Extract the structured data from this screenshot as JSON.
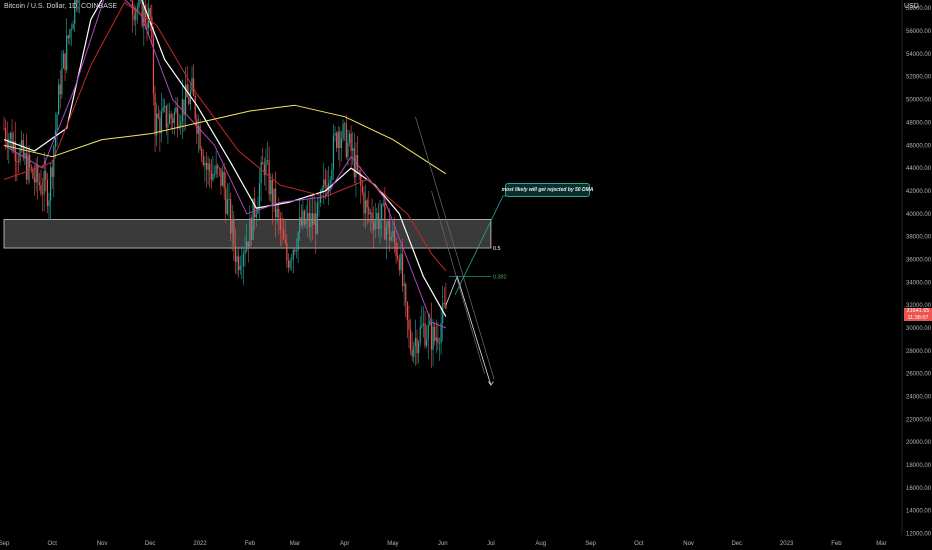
{
  "header": {
    "symbol_title": "Bitcoin / U.S. Dollar, 1D, COINBASE",
    "currency": "USD"
  },
  "annotation": {
    "text": "most likely will get rejected by 50 DMA"
  },
  "fib_labels": {
    "level_1": "0.5",
    "level_2": "0.382"
  },
  "last_price": {
    "price": "31641.65",
    "countdown": "11:38:07"
  },
  "colors": {
    "up": "#26a69a",
    "down": "#ef5350",
    "ma_white": "#ffffff",
    "ma_purple": "#ab47bc",
    "ma_red": "#c62828",
    "ma_yellow": "#f5e663",
    "zone": "#d0d0d0"
  },
  "chart_data": {
    "type": "candlestick",
    "title": "Bitcoin / U.S. Dollar, 1D, COINBASE",
    "y_axis": {
      "ticks": [
        "58000.00",
        "56000.00",
        "54000.00",
        "52000.00",
        "50000.00",
        "48000.00",
        "46000.00",
        "44000.00",
        "42000.00",
        "40000.00",
        "38000.00",
        "36000.00",
        "34000.00",
        "32000.00",
        "30000.00",
        "28000.00",
        "26000.00",
        "24000.00",
        "22000.00",
        "20000.00",
        "18000.00",
        "16000.00",
        "14000.00",
        "12000.00"
      ],
      "range": [
        11000,
        59000
      ]
    },
    "x_axis": {
      "ticks": [
        "Sep",
        "Oct",
        "Nov",
        "Dec",
        "2022",
        "Feb",
        "Mar",
        "Apr",
        "May",
        "Jun",
        "Jul",
        "Aug",
        "Sep",
        "Oct",
        "Nov",
        "Dec",
        "2023",
        "Feb",
        "Mar"
      ]
    },
    "price_path": [
      [
        "2021-09-01",
        47500
      ],
      [
        "2021-09-10",
        45500
      ],
      [
        "2021-09-20",
        43000
      ],
      [
        "2021-09-29",
        42000
      ],
      [
        "2021-10-06",
        51500
      ],
      [
        "2021-10-15",
        58500
      ],
      [
        "2021-10-20",
        64000
      ],
      [
        "2021-11-01",
        61000
      ],
      [
        "2021-11-10",
        68000
      ],
      [
        "2021-11-20",
        58500
      ],
      [
        "2021-12-01",
        57000
      ],
      [
        "2021-12-04",
        48000
      ],
      [
        "2021-12-15",
        48500
      ],
      [
        "2021-12-27",
        50500
      ],
      [
        "2022-01-05",
        44000
      ],
      [
        "2022-01-15",
        43000
      ],
      [
        "2022-01-24",
        36000
      ],
      [
        "2022-02-01",
        38500
      ],
      [
        "2022-02-10",
        44500
      ],
      [
        "2022-02-24",
        36000
      ],
      [
        "2022-03-05",
        39000
      ],
      [
        "2022-03-15",
        39500
      ],
      [
        "2022-03-28",
        47500
      ],
      [
        "2022-04-05",
        45500
      ],
      [
        "2022-04-15",
        40000
      ],
      [
        "2022-04-25",
        39500
      ],
      [
        "2022-05-05",
        36500
      ],
      [
        "2022-05-09",
        31000
      ],
      [
        "2022-05-12",
        28500
      ],
      [
        "2022-05-20",
        30000
      ],
      [
        "2022-05-27",
        29000
      ],
      [
        "2022-06-03",
        31641.65
      ]
    ],
    "moving_averages": [
      {
        "color": "white",
        "points": [
          [
            "2021-09-01",
            46500
          ],
          [
            "2021-09-20",
            45500
          ],
          [
            "2021-10-10",
            47500
          ],
          [
            "2021-10-25",
            57000
          ],
          [
            "2021-11-10",
            61000
          ],
          [
            "2021-11-25",
            59000
          ],
          [
            "2021-12-10",
            53500
          ],
          [
            "2021-12-30",
            49500
          ],
          [
            "2022-01-20",
            44500
          ],
          [
            "2022-02-05",
            40500
          ],
          [
            "2022-02-25",
            41000
          ],
          [
            "2022-03-20",
            42000
          ],
          [
            "2022-04-05",
            44000
          ],
          [
            "2022-04-20",
            42500
          ],
          [
            "2022-05-05",
            40000
          ],
          [
            "2022-05-20",
            34500
          ],
          [
            "2022-06-03",
            31000
          ]
        ]
      },
      {
        "color": "purple",
        "points": [
          [
            "2021-09-01",
            46000
          ],
          [
            "2021-09-25",
            44000
          ],
          [
            "2021-10-15",
            51000
          ],
          [
            "2021-11-05",
            60000
          ],
          [
            "2021-11-25",
            57500
          ],
          [
            "2021-12-15",
            50000
          ],
          [
            "2022-01-10",
            46000
          ],
          [
            "2022-01-30",
            40000
          ],
          [
            "2022-02-20",
            41000
          ],
          [
            "2022-03-20",
            41500
          ],
          [
            "2022-04-05",
            45000
          ],
          [
            "2022-04-25",
            41500
          ],
          [
            "2022-05-10",
            36000
          ],
          [
            "2022-05-25",
            30500
          ],
          [
            "2022-06-03",
            30000
          ]
        ]
      },
      {
        "color": "red",
        "points": [
          [
            "2021-09-01",
            43000
          ],
          [
            "2021-10-01",
            44500
          ],
          [
            "2021-10-25",
            53000
          ],
          [
            "2021-11-15",
            58500
          ],
          [
            "2021-12-05",
            56500
          ],
          [
            "2021-12-30",
            50500
          ],
          [
            "2022-01-25",
            45500
          ],
          [
            "2022-02-20",
            42500
          ],
          [
            "2022-03-20",
            41500
          ],
          [
            "2022-04-15",
            43000
          ],
          [
            "2022-05-10",
            40000
          ],
          [
            "2022-05-25",
            36500
          ],
          [
            "2022-06-03",
            35000
          ]
        ]
      },
      {
        "color": "yellow",
        "points": [
          [
            "2021-09-01",
            46000
          ],
          [
            "2021-10-01",
            45000
          ],
          [
            "2021-11-01",
            46500
          ],
          [
            "2021-12-01",
            47000
          ],
          [
            "2022-01-01",
            48000
          ],
          [
            "2022-02-01",
            49000
          ],
          [
            "2022-03-01",
            49500
          ],
          [
            "2022-04-01",
            48500
          ],
          [
            "2022-05-01",
            46500
          ],
          [
            "2022-06-03",
            43500
          ]
        ]
      }
    ],
    "support_zone": {
      "from": "2021-09-01",
      "to": "2022-07-01",
      "y_low": 37000,
      "y_high": 39500
    },
    "fib_levels": [
      {
        "label": "0.5",
        "y": 37000
      },
      {
        "label": "0.382",
        "y": 34500
      }
    ],
    "projection": {
      "path": [
        [
          "2022-06-03",
          32000
        ],
        [
          "2022-06-10",
          34500
        ],
        [
          "2022-07-01",
          25000
        ]
      ],
      "channel_lines": [
        [
          [
            "2022-05-15",
            48500
          ],
          [
            "2022-07-03",
            25500
          ]
        ],
        [
          [
            "2022-05-25",
            42000
          ],
          [
            "2022-06-27",
            26000
          ]
        ]
      ]
    },
    "legend": "none",
    "grid": false
  }
}
